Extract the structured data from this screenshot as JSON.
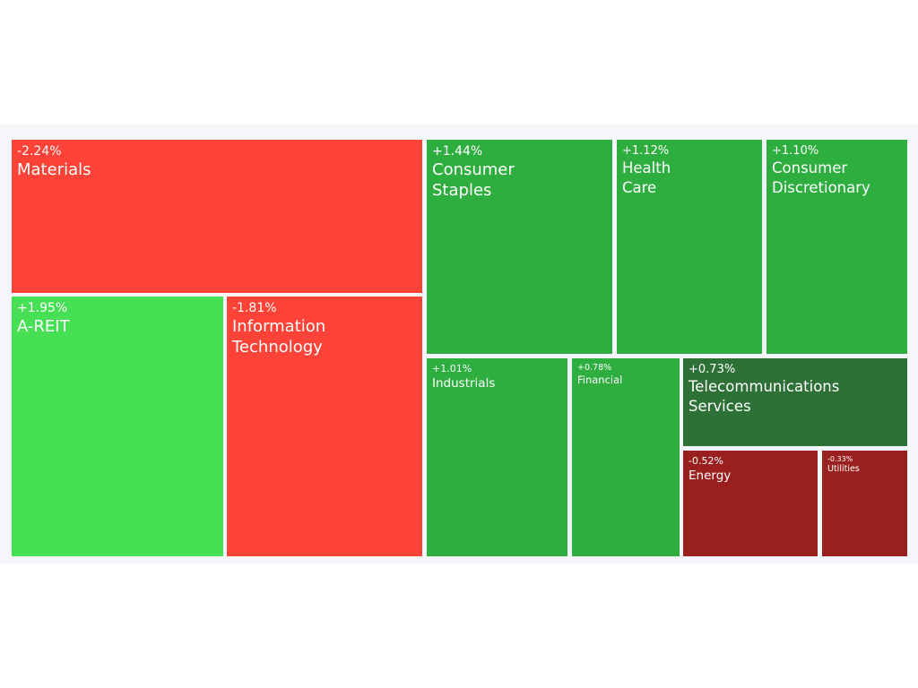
{
  "chart_data": {
    "type": "treemap",
    "colors": {
      "strong_negative": "#fd4237",
      "mild_negative": "#99201e",
      "strong_positive": "#47e055",
      "positive": "#2fae40",
      "weak_positive": "#2e7137"
    },
    "sectors": [
      {
        "name": "Materials",
        "change": "-2.24%",
        "value": -2.24
      },
      {
        "name": "A-REIT",
        "change": "+1.95%",
        "value": 1.95
      },
      {
        "name": "Information\nTechnology",
        "change": "-1.81%",
        "value": -1.81
      },
      {
        "name": "Consumer\nStaples",
        "change": "+1.44%",
        "value": 1.44
      },
      {
        "name": "Health\nCare",
        "change": "+1.12%",
        "value": 1.12
      },
      {
        "name": "Consumer\nDiscretionary",
        "change": "+1.10%",
        "value": 1.1
      },
      {
        "name": "Industrials",
        "change": "+1.01%",
        "value": 1.01
      },
      {
        "name": "Financial",
        "change": "+0.78%",
        "value": 0.78
      },
      {
        "name": "Telecommunications\nServices",
        "change": "+0.73%",
        "value": 0.73
      },
      {
        "name": "Energy",
        "change": "-0.52%",
        "value": -0.52
      },
      {
        "name": "Utilities",
        "change": "-0.33%",
        "value": -0.33
      }
    ]
  }
}
